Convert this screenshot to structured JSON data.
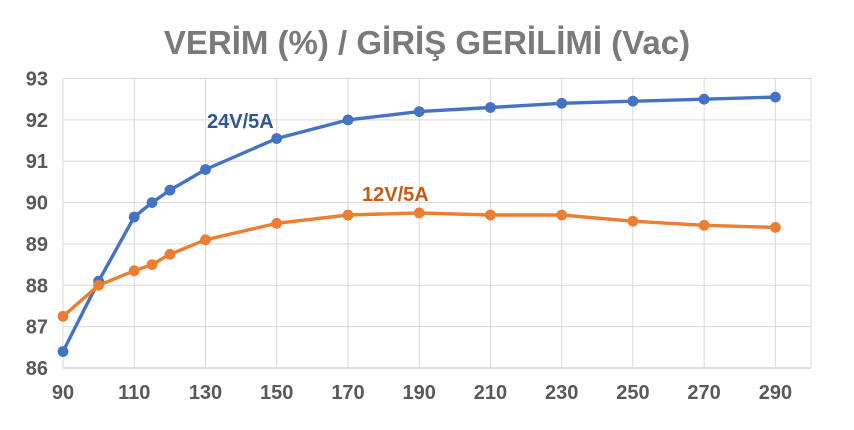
{
  "title": "VERİM (%) / GİRİŞ GERİLİMİ (Vac)",
  "chart_data": {
    "type": "line",
    "title": "VERİM (%) / GİRİŞ GERİLİMİ (Vac)",
    "xlabel": "GİRİŞ GERİLİMİ (Vac)",
    "ylabel": "VERİM (%)",
    "x": [
      90,
      100,
      110,
      115,
      120,
      130,
      150,
      170,
      190,
      210,
      230,
      250,
      270,
      290
    ],
    "series": [
      {
        "name": "24V/5A",
        "color": "#4472C4",
        "label_color": "#2F5597",
        "values": [
          86.4,
          88.1,
          89.65,
          90.0,
          90.3,
          90.8,
          91.55,
          92.0,
          92.2,
          92.3,
          92.4,
          92.45,
          92.5,
          92.55
        ]
      },
      {
        "name": "12V/5A",
        "color": "#ED7D31",
        "label_color": "#C55A11",
        "values": [
          87.25,
          88.0,
          88.35,
          88.5,
          88.75,
          89.1,
          89.5,
          89.7,
          89.75,
          89.7,
          89.7,
          89.55,
          89.45,
          89.4
        ]
      }
    ],
    "xlim": [
      90,
      300
    ],
    "ylim": [
      86,
      93
    ],
    "x_ticks": [
      90,
      110,
      130,
      150,
      170,
      190,
      210,
      230,
      250,
      270,
      290
    ],
    "y_ticks": [
      86,
      87,
      88,
      89,
      90,
      91,
      92,
      93
    ],
    "grid": true,
    "gridline_color": "#D9D9D9",
    "axis_line_color": "#BFBFBF",
    "tick_label_color": "#595959",
    "title_color": "#7A7A7A",
    "background": "#FFFFFF",
    "legend_position": "inline-data-labels"
  }
}
